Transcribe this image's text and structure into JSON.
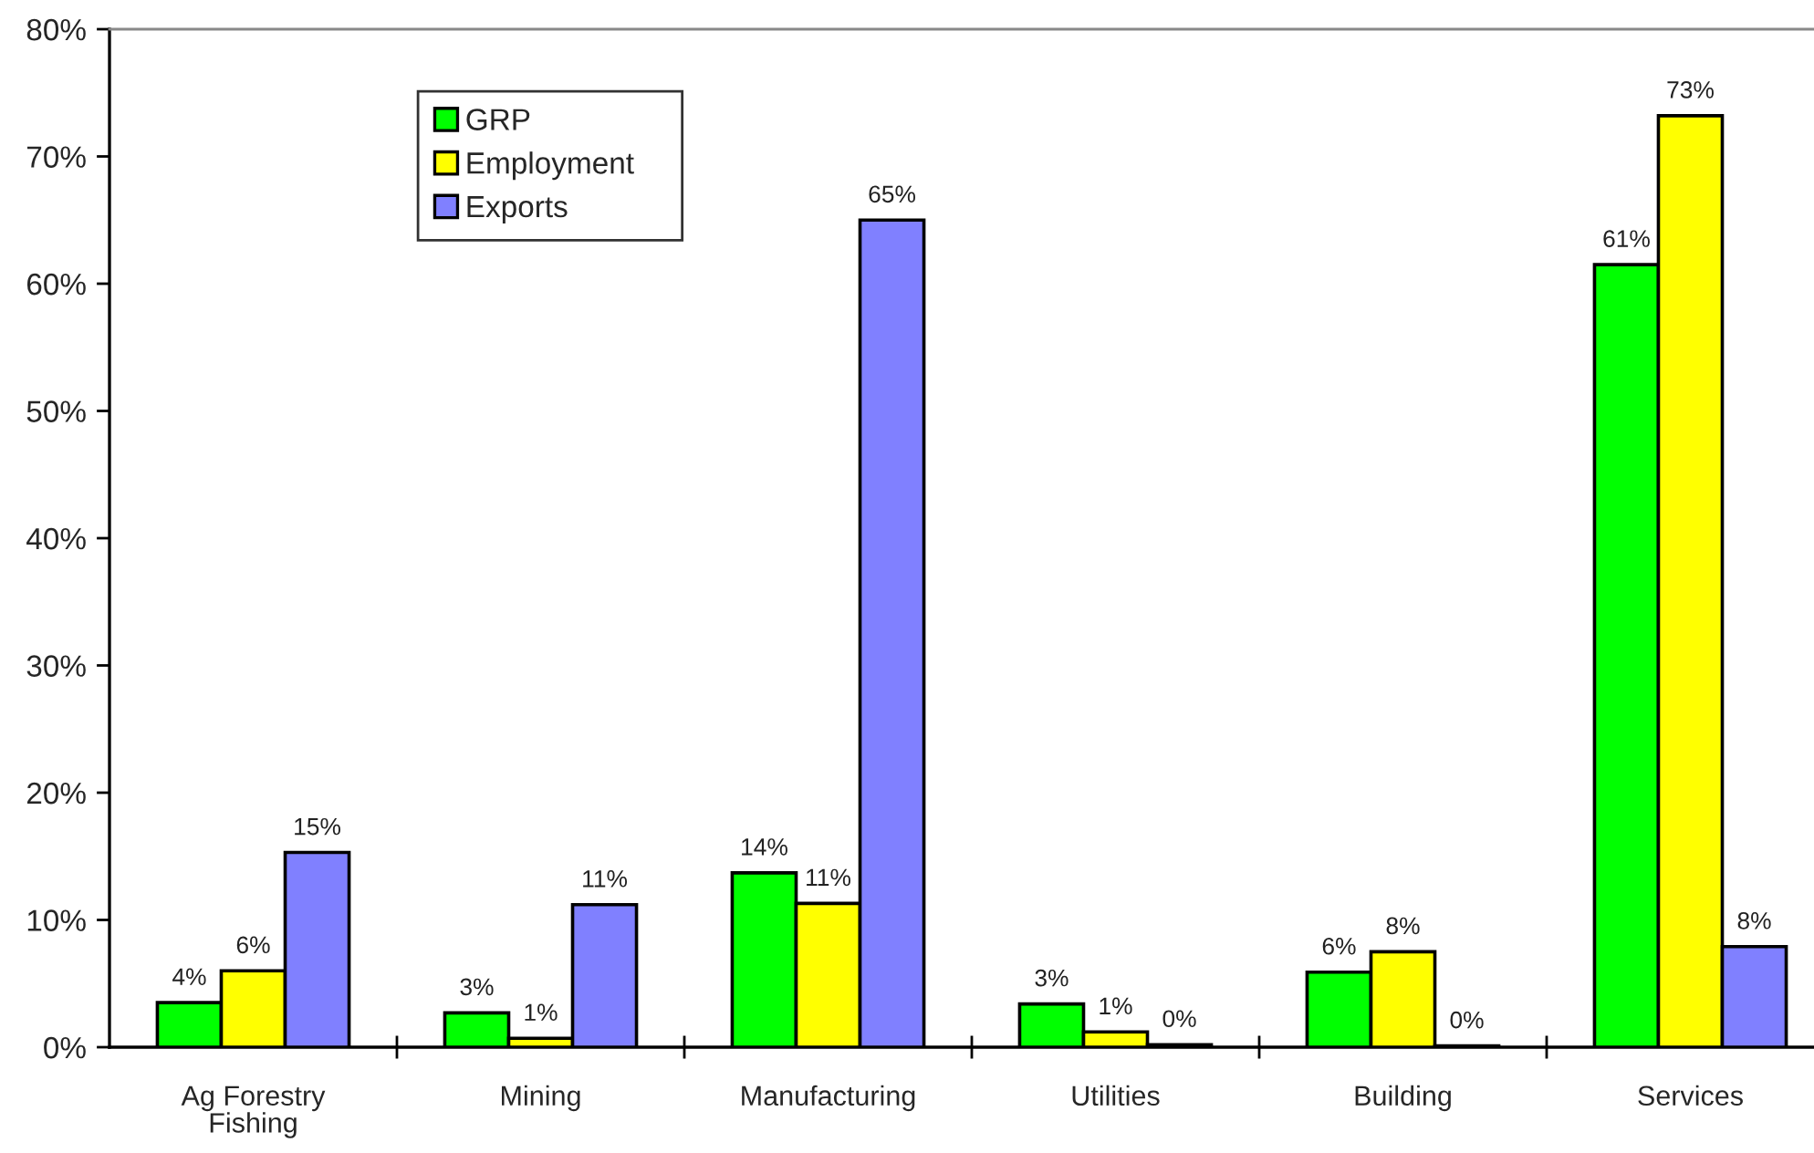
{
  "chart_data": {
    "type": "bar",
    "categories": [
      "Ag Forestry\nFishing",
      "Mining",
      "Manufacturing",
      "Utilities",
      "Building",
      "Services"
    ],
    "series": [
      {
        "name": "GRP",
        "color": "#00ff00",
        "values": [
          3.5,
          2.7,
          13.7,
          3.4,
          5.9,
          61.5
        ],
        "value_labels": [
          "4%",
          "3%",
          "14%",
          "3%",
          "6%",
          "61%"
        ]
      },
      {
        "name": "Employment",
        "color": "#ffff00",
        "values": [
          6.0,
          0.7,
          11.3,
          1.2,
          7.5,
          73.2
        ],
        "value_labels": [
          "6%",
          "1%",
          "11%",
          "1%",
          "8%",
          "73%"
        ]
      },
      {
        "name": "Exports",
        "color": "#8080ff",
        "values": [
          15.3,
          11.2,
          65.0,
          0.2,
          0.1,
          7.9
        ],
        "value_labels": [
          "15%",
          "11%",
          "65%",
          "0%",
          "0%",
          "8%"
        ]
      }
    ],
    "ylim": [
      0,
      80
    ],
    "yticks": [
      {
        "value": 0,
        "label": "0%"
      },
      {
        "value": 10,
        "label": "10%"
      },
      {
        "value": 20,
        "label": "20%"
      },
      {
        "value": 30,
        "label": "30%"
      },
      {
        "value": 40,
        "label": "40%"
      },
      {
        "value": 50,
        "label": "50%"
      },
      {
        "value": 60,
        "label": "60%"
      },
      {
        "value": 70,
        "label": "70%"
      },
      {
        "value": 80,
        "label": "80%"
      }
    ],
    "grid": false,
    "legend": "top left"
  }
}
